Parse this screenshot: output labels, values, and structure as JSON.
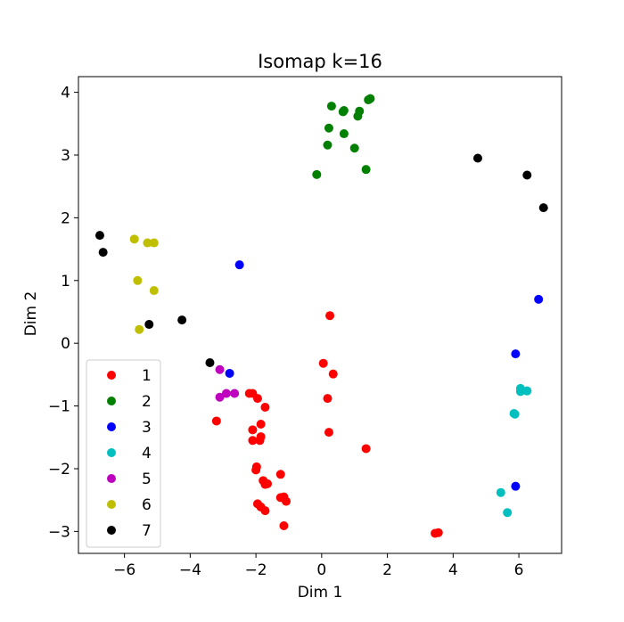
{
  "chart_data": {
    "type": "scatter",
    "title": "Isomap k=16",
    "xlabel": "Dim 1",
    "ylabel": "Dim 2",
    "xlim": [
      -7.4,
      7.3
    ],
    "ylim": [
      -3.35,
      4.25
    ],
    "xticks": [
      -6,
      -4,
      -2,
      0,
      2,
      4,
      6
    ],
    "yticks": [
      -3,
      -2,
      -1,
      0,
      1,
      2,
      3,
      4
    ],
    "grid": false,
    "legend_position": "lower-left",
    "series": [
      {
        "name": "1",
        "color": "#ff0000",
        "points": [
          [
            0.25,
            0.44
          ],
          [
            0.05,
            -0.32
          ],
          [
            0.35,
            -0.49
          ],
          [
            0.18,
            -0.88
          ],
          [
            0.22,
            -1.42
          ],
          [
            1.35,
            -1.68
          ],
          [
            -2.2,
            -0.8
          ],
          [
            -2.1,
            -0.8
          ],
          [
            -1.95,
            -0.88
          ],
          [
            -1.72,
            -1.02
          ],
          [
            -1.85,
            -1.29
          ],
          [
            -2.1,
            -1.38
          ],
          [
            -1.85,
            -1.49
          ],
          [
            -2.1,
            -1.55
          ],
          [
            -1.88,
            -1.55
          ],
          [
            -3.2,
            -1.24
          ],
          [
            -1.98,
            -1.97
          ],
          [
            -2.0,
            -2.02
          ],
          [
            -1.25,
            -2.09
          ],
          [
            -1.78,
            -2.19
          ],
          [
            -1.65,
            -2.24
          ],
          [
            -1.72,
            -2.25
          ],
          [
            -1.25,
            -2.46
          ],
          [
            -1.15,
            -2.45
          ],
          [
            -1.08,
            -2.52
          ],
          [
            -1.95,
            -2.56
          ],
          [
            -1.85,
            -2.61
          ],
          [
            -1.72,
            -2.67
          ],
          [
            -1.15,
            -2.91
          ],
          [
            3.45,
            -3.03
          ],
          [
            3.55,
            -3.02
          ]
        ]
      },
      {
        "name": "2",
        "color": "#008000",
        "points": [
          [
            1.48,
            3.9
          ],
          [
            1.42,
            3.88
          ],
          [
            0.3,
            3.78
          ],
          [
            0.68,
            3.71
          ],
          [
            0.65,
            3.69
          ],
          [
            1.15,
            3.7
          ],
          [
            1.1,
            3.62
          ],
          [
            0.22,
            3.43
          ],
          [
            0.68,
            3.34
          ],
          [
            0.18,
            3.16
          ],
          [
            1.0,
            3.11
          ],
          [
            1.35,
            2.77
          ],
          [
            -0.15,
            2.69
          ]
        ]
      },
      {
        "name": "3",
        "color": "#0000ff",
        "points": [
          [
            -2.5,
            1.25
          ],
          [
            6.6,
            0.7
          ],
          [
            5.9,
            -0.17
          ],
          [
            -2.8,
            -0.48
          ],
          [
            5.9,
            -2.28
          ]
        ]
      },
      {
        "name": "4",
        "color": "#00bfbf",
        "points": [
          [
            6.05,
            -0.72
          ],
          [
            6.05,
            -0.77
          ],
          [
            6.25,
            -0.76
          ],
          [
            5.85,
            -1.12
          ],
          [
            5.88,
            -1.13
          ],
          [
            5.45,
            -2.38
          ],
          [
            5.65,
            -2.7
          ]
        ]
      },
      {
        "name": "5",
        "color": "#bf00bf",
        "points": [
          [
            -3.1,
            -0.42
          ],
          [
            -3.1,
            -0.86
          ],
          [
            -2.9,
            -0.8
          ],
          [
            -2.65,
            -0.8
          ]
        ]
      },
      {
        "name": "6",
        "color": "#bfbf00",
        "points": [
          [
            -5.7,
            1.66
          ],
          [
            -5.3,
            1.6
          ],
          [
            -5.1,
            1.6
          ],
          [
            -5.6,
            1.0
          ],
          [
            -5.1,
            0.84
          ],
          [
            -5.55,
            0.22
          ]
        ]
      },
      {
        "name": "7",
        "color": "#000000",
        "points": [
          [
            4.75,
            2.95
          ],
          [
            6.25,
            2.68
          ],
          [
            6.75,
            2.16
          ],
          [
            -6.75,
            1.72
          ],
          [
            -6.65,
            1.45
          ],
          [
            -5.25,
            0.3
          ],
          [
            -4.25,
            0.37
          ],
          [
            -3.4,
            -0.31
          ]
        ]
      }
    ]
  }
}
